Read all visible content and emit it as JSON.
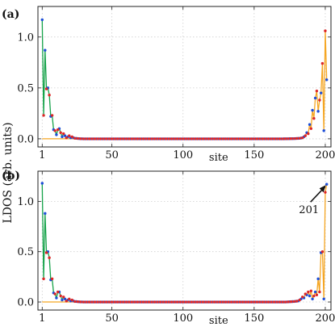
{
  "figure": {
    "ylabel": "LDOS (arb. units)"
  },
  "chart_data": [
    {
      "panel_label": "(a)",
      "type": "line",
      "xlabel": "site",
      "ylabel": "",
      "xlim": [
        -2,
        204
      ],
      "ylim": [
        -0.08,
        1.3
      ],
      "xticks": [
        1,
        50,
        100,
        150,
        200
      ],
      "yticks": [
        0.0,
        0.5,
        1.0
      ],
      "ytick_labels": [
        "0.0",
        "0.5",
        "1.0"
      ],
      "grid": true,
      "annotation": null,
      "series": [
        {
          "color": "#16a34a",
          "points": [
            [
              1,
              1.17
            ],
            [
              2,
              0.23
            ],
            [
              3,
              0.87
            ],
            [
              4,
              0.49
            ],
            [
              5,
              0.5
            ],
            [
              6,
              0.43
            ],
            [
              7,
              0.22
            ],
            [
              8,
              0.23
            ],
            [
              9,
              0.09
            ],
            [
              10,
              0.08
            ],
            [
              11,
              0.04
            ],
            [
              12,
              0.09
            ],
            [
              13,
              0.1
            ],
            [
              14,
              0.06
            ],
            [
              15,
              0.02
            ],
            [
              16,
              0.05
            ],
            [
              17,
              0.03
            ],
            [
              18,
              0.01
            ],
            [
              19,
              0.02
            ],
            [
              20,
              0.03
            ],
            [
              21,
              0.01
            ],
            [
              22,
              0.02
            ],
            [
              23,
              0.01
            ],
            [
              24,
              0.005
            ],
            [
              25,
              0.005
            ],
            [
              26,
              0.003
            ],
            [
              27,
              0.002
            ],
            [
              28,
              0.001
            ],
            [
              29,
              0.001
            ],
            [
              30,
              0.0
            ],
            [
              60,
              0.0
            ],
            [
              100,
              0.0
            ]
          ]
        },
        {
          "color": "#f5a623",
          "points": [
            [
              1,
              0.0
            ],
            [
              100,
              0.0
            ],
            [
              170,
              0.0
            ],
            [
              178,
              0.002
            ],
            [
              182,
              0.005
            ],
            [
              184,
              0.01
            ],
            [
              185,
              0.02
            ],
            [
              186,
              0.03
            ],
            [
              187,
              0.06
            ],
            [
              188,
              0.05
            ],
            [
              189,
              0.14
            ],
            [
              190,
              0.1
            ],
            [
              191,
              0.28
            ],
            [
              192,
              0.2
            ],
            [
              193,
              0.4
            ],
            [
              194,
              0.47
            ],
            [
              195,
              0.27
            ],
            [
              196,
              0.38
            ],
            [
              197,
              0.45
            ],
            [
              198,
              0.74
            ],
            [
              199,
              0.08
            ],
            [
              200,
              1.06
            ],
            [
              201,
              0.58
            ]
          ]
        }
      ],
      "marker_series": [
        {
          "color": "#1d4ed8",
          "x": [
            1,
            3,
            5,
            7,
            9,
            11,
            13,
            15,
            17,
            19,
            21,
            23,
            25,
            27,
            29,
            31,
            33,
            35,
            37,
            39,
            41,
            43,
            45,
            47,
            49,
            51,
            53,
            55,
            57,
            59,
            61,
            63,
            65,
            67,
            69,
            71,
            73,
            75,
            77,
            79,
            81,
            83,
            85,
            87,
            89,
            91,
            93,
            95,
            97,
            99,
            101,
            103,
            105,
            107,
            109,
            111,
            113,
            115,
            117,
            119,
            121,
            123,
            125,
            127,
            129,
            131,
            133,
            135,
            137,
            139,
            141,
            143,
            145,
            147,
            149,
            151,
            153,
            155,
            157,
            159,
            161,
            163,
            165,
            167,
            169,
            171,
            173,
            175,
            177,
            179,
            181,
            183,
            185,
            187,
            189,
            191,
            193,
            195,
            197,
            199,
            201
          ]
        },
        {
          "color": "#dc2626",
          "x": [
            2,
            4,
            6,
            8,
            10,
            12,
            14,
            16,
            18,
            20,
            22,
            24,
            26,
            28,
            30,
            32,
            34,
            36,
            38,
            40,
            42,
            44,
            46,
            48,
            50,
            52,
            54,
            56,
            58,
            60,
            62,
            64,
            66,
            68,
            70,
            72,
            74,
            76,
            78,
            80,
            82,
            84,
            86,
            88,
            90,
            92,
            94,
            96,
            98,
            100,
            102,
            104,
            106,
            108,
            110,
            112,
            114,
            116,
            118,
            120,
            122,
            124,
            126,
            128,
            130,
            132,
            134,
            136,
            138,
            140,
            142,
            144,
            146,
            148,
            150,
            152,
            154,
            156,
            158,
            160,
            162,
            164,
            166,
            168,
            170,
            172,
            174,
            176,
            178,
            180,
            182,
            184,
            186,
            188,
            190,
            192,
            194,
            196,
            198,
            200
          ]
        }
      ]
    },
    {
      "panel_label": "(b)",
      "type": "line",
      "xlabel": "site",
      "ylabel": "",
      "xlim": [
        -2,
        204
      ],
      "ylim": [
        -0.08,
        1.3
      ],
      "xticks": [
        1,
        50,
        100,
        150,
        200
      ],
      "yticks": [
        0.0,
        0.5,
        1.0
      ],
      "ytick_labels": [
        "0.0",
        "0.5",
        "1.0"
      ],
      "grid": true,
      "annotation": {
        "text": "201",
        "x": 201,
        "y": 1.17
      },
      "series": [
        {
          "color": "#16a34a",
          "points": [
            [
              1,
              1.18
            ],
            [
              2,
              0.23
            ],
            [
              3,
              0.88
            ],
            [
              4,
              0.49
            ],
            [
              5,
              0.5
            ],
            [
              6,
              0.44
            ],
            [
              7,
              0.22
            ],
            [
              8,
              0.23
            ],
            [
              9,
              0.09
            ],
            [
              10,
              0.08
            ],
            [
              11,
              0.04
            ],
            [
              12,
              0.1
            ],
            [
              13,
              0.1
            ],
            [
              14,
              0.06
            ],
            [
              15,
              0.02
            ],
            [
              16,
              0.05
            ],
            [
              17,
              0.03
            ],
            [
              18,
              0.01
            ],
            [
              19,
              0.02
            ],
            [
              20,
              0.03
            ],
            [
              21,
              0.01
            ],
            [
              22,
              0.02
            ],
            [
              23,
              0.01
            ],
            [
              24,
              0.005
            ],
            [
              25,
              0.005
            ],
            [
              26,
              0.003
            ],
            [
              27,
              0.002
            ],
            [
              28,
              0.001
            ],
            [
              29,
              0.001
            ],
            [
              30,
              0.0
            ],
            [
              60,
              0.0
            ],
            [
              100,
              0.0
            ]
          ]
        },
        {
          "color": "#f5a623",
          "points": [
            [
              1,
              0.0
            ],
            [
              100,
              0.0
            ],
            [
              172,
              0.0
            ],
            [
              178,
              0.005
            ],
            [
              181,
              0.01
            ],
            [
              182,
              0.02
            ],
            [
              183,
              0.03
            ],
            [
              184,
              0.05
            ],
            [
              185,
              0.04
            ],
            [
              186,
              0.08
            ],
            [
              187,
              0.07
            ],
            [
              188,
              0.1
            ],
            [
              189,
              0.06
            ],
            [
              190,
              0.11
            ],
            [
              191,
              0.03
            ],
            [
              192,
              0.06
            ],
            [
              193,
              0.1
            ],
            [
              194,
              0.07
            ],
            [
              195,
              0.23
            ],
            [
              196,
              0.1
            ],
            [
              197,
              0.49
            ],
            [
              198,
              0.5
            ],
            [
              199,
              0.03
            ],
            [
              200,
              1.09
            ],
            [
              201,
              1.17
            ]
          ]
        }
      ],
      "marker_series": [
        {
          "color": "#1d4ed8",
          "x": [
            1,
            3,
            5,
            7,
            9,
            11,
            13,
            15,
            17,
            19,
            21,
            23,
            25,
            27,
            29,
            31,
            33,
            35,
            37,
            39,
            41,
            43,
            45,
            47,
            49,
            51,
            53,
            55,
            57,
            59,
            61,
            63,
            65,
            67,
            69,
            71,
            73,
            75,
            77,
            79,
            81,
            83,
            85,
            87,
            89,
            91,
            93,
            95,
            97,
            99,
            101,
            103,
            105,
            107,
            109,
            111,
            113,
            115,
            117,
            119,
            121,
            123,
            125,
            127,
            129,
            131,
            133,
            135,
            137,
            139,
            141,
            143,
            145,
            147,
            149,
            151,
            153,
            155,
            157,
            159,
            161,
            163,
            165,
            167,
            169,
            171,
            173,
            175,
            177,
            179,
            181,
            183,
            185,
            187,
            189,
            191,
            193,
            195,
            197,
            199,
            201
          ]
        },
        {
          "color": "#dc2626",
          "x": [
            2,
            4,
            6,
            8,
            10,
            12,
            14,
            16,
            18,
            20,
            22,
            24,
            26,
            28,
            30,
            32,
            34,
            36,
            38,
            40,
            42,
            44,
            46,
            48,
            50,
            52,
            54,
            56,
            58,
            60,
            62,
            64,
            66,
            68,
            70,
            72,
            74,
            76,
            78,
            80,
            82,
            84,
            86,
            88,
            90,
            92,
            94,
            96,
            98,
            100,
            102,
            104,
            106,
            108,
            110,
            112,
            114,
            116,
            118,
            120,
            122,
            124,
            126,
            128,
            130,
            132,
            134,
            136,
            138,
            140,
            142,
            144,
            146,
            148,
            150,
            152,
            154,
            156,
            158,
            160,
            162,
            164,
            166,
            168,
            170,
            172,
            174,
            176,
            178,
            180,
            182,
            184,
            186,
            188,
            190,
            192,
            194,
            196,
            198,
            200
          ]
        }
      ]
    }
  ]
}
